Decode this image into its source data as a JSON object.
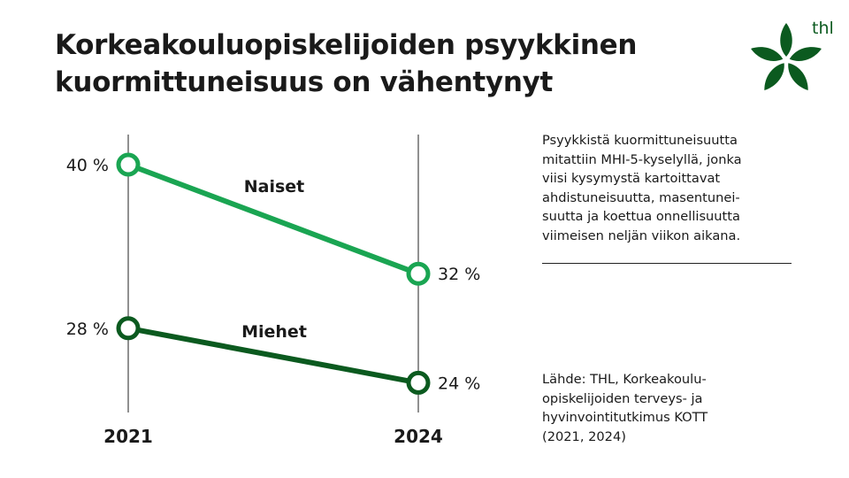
{
  "title_line1": "Korkeakouluopiskelijoiden psyykkinen",
  "title_line2": "kuormittuneisuus on vähentynyt",
  "logo": {
    "text": "thl",
    "color": "#0b5a1f"
  },
  "description": [
    "Psyykkistä kuormittuneisuutta",
    "mitattiin MHI-5-kyselyllä, jonka",
    "viisi kysymystä kartoittavat",
    "ahdistuneisuutta, masentunei-",
    "suutta ja koettua onnellisuutta",
    "viimeisen neljän viikon aikana."
  ],
  "source": [
    "Lähde: THL, Korkeakoulu-",
    "opiskelijoiden terveys- ja",
    "hyvinvointitutkimus KOTT",
    "(2021, 2024)"
  ],
  "chart_data": {
    "type": "line",
    "categories": [
      "2021",
      "2024"
    ],
    "series": [
      {
        "name": "Naiset",
        "values": [
          40,
          32
        ],
        "labels": [
          "40 %",
          "32 %"
        ],
        "color": "#1aa552"
      },
      {
        "name": "Miehet",
        "values": [
          28,
          24
        ],
        "labels": [
          "28 %",
          "24 %"
        ],
        "color": "#0b5a1f"
      }
    ]
  }
}
